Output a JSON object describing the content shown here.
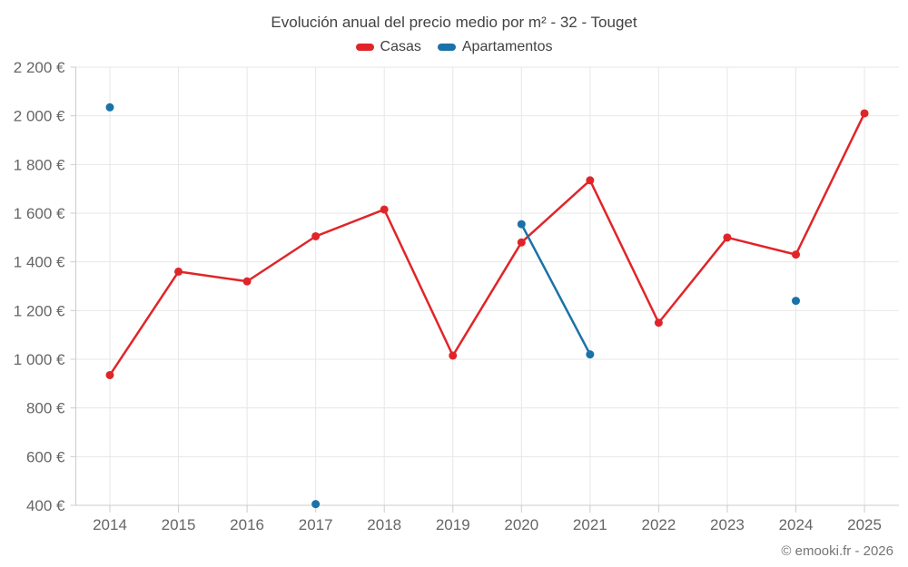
{
  "header": {
    "title": "Evolución anual del precio medio por m² - 32 - Touget"
  },
  "legend": {
    "items": [
      {
        "label": "Casas",
        "color": "#e02529"
      },
      {
        "label": "Apartamentos",
        "color": "#1a72a8"
      }
    ]
  },
  "footer": {
    "copyright": "© emooki.fr - 2026"
  },
  "colors": {
    "grid": "#e7e7e7",
    "axis": "#cccccc",
    "tick_label": "#666666",
    "title": "#424242",
    "footer": "#757575"
  },
  "chart_data": {
    "type": "line",
    "title": "Evolución anual del precio medio por m² - 32 - Touget",
    "xlabel": "",
    "ylabel": "",
    "x": [
      2014,
      2015,
      2016,
      2017,
      2018,
      2019,
      2020,
      2021,
      2022,
      2023,
      2024,
      2025
    ],
    "series": [
      {
        "name": "Casas",
        "color": "#e02529",
        "values": [
          935,
          1360,
          1320,
          1505,
          1615,
          1015,
          1480,
          1735,
          1150,
          1500,
          1430,
          2010
        ]
      },
      {
        "name": "Apartamentos",
        "color": "#1a72a8",
        "values": [
          2035,
          null,
          null,
          405,
          null,
          null,
          1555,
          1020,
          null,
          null,
          1240,
          null
        ]
      }
    ],
    "ylim": [
      400,
      2200
    ],
    "ytick_step": 200,
    "ytick_suffix": " €",
    "grid": true,
    "legend_position": "top"
  }
}
